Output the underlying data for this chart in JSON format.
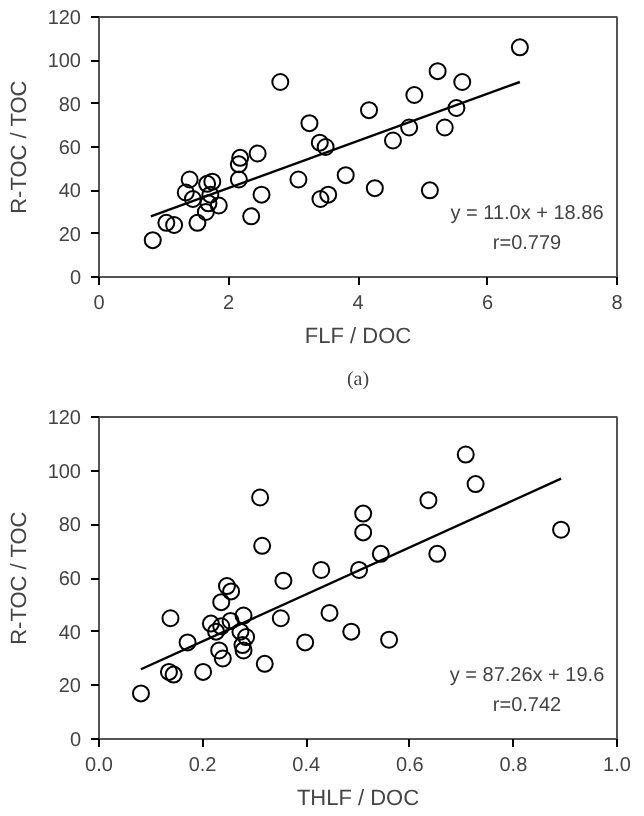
{
  "chart_data": [
    {
      "type": "scatter",
      "xlabel": "FLF / DOC",
      "ylabel": "R-TOC / TOC",
      "xlim": [
        0,
        8
      ],
      "ylim": [
        0,
        120
      ],
      "xticks": [
        0,
        2,
        4,
        6,
        8
      ],
      "yticks": [
        0,
        20,
        40,
        60,
        80,
        100,
        120
      ],
      "grid": false,
      "marker": "circle",
      "annotations": [
        "y = 11.0x + 18.86",
        "r=0.779",
        "(a)"
      ],
      "series": [
        {
          "type": "scatter",
          "color": "#000000",
          "x": [
            0.83,
            1.04,
            1.16,
            1.4,
            1.34,
            1.45,
            1.52,
            1.65,
            1.67,
            1.75,
            1.72,
            1.69,
            1.85,
            2.16,
            2.16,
            2.18,
            2.35,
            2.45,
            2.51,
            2.8,
            3.08,
            3.25,
            3.41,
            3.42,
            3.5,
            3.54,
            3.81,
            4.17,
            4.26,
            4.54,
            4.79,
            4.87,
            5.11,
            5.23,
            5.34,
            5.52,
            5.61,
            6.5
          ],
          "values": [
            17,
            25,
            24,
            45,
            39,
            36,
            25,
            30,
            43,
            44,
            38,
            34,
            33,
            45,
            52,
            55,
            28,
            57,
            38,
            90,
            45,
            71,
            62,
            36,
            60,
            38,
            47,
            77,
            41,
            63,
            69,
            84,
            40,
            95,
            69,
            78,
            90,
            106
          ]
        },
        {
          "type": "line",
          "color": "#000000",
          "line_style": "solid",
          "marker": "none",
          "x": [
            0.8,
            6.5
          ],
          "values": [
            28,
            90
          ]
        }
      ]
    },
    {
      "type": "scatter",
      "xlabel": "THLF / DOC",
      "ylabel": "R-TOC / TOC",
      "xlim": [
        0,
        1
      ],
      "ylim": [
        0,
        120
      ],
      "xticks": [
        {
          "value": 0,
          "label": "0.0"
        },
        {
          "value": 0.2,
          "label": "0.2"
        },
        {
          "value": 0.4,
          "label": "0.4"
        },
        {
          "value": 0.6,
          "label": "0.6"
        },
        {
          "value": 0.8,
          "label": "0.8"
        },
        {
          "value": 1,
          "label": "1.0"
        }
      ],
      "yticks": [
        0,
        20,
        40,
        60,
        80,
        100,
        120
      ],
      "grid": false,
      "marker": "circle",
      "annotations": [
        "y = 87.26x + 19.6",
        "r=0.742"
      ],
      "series": [
        {
          "type": "scatter",
          "color": "#000000",
          "x": [
            0.081,
            0.135,
            0.144,
            0.138,
            0.171,
            0.201,
            0.216,
            0.226,
            0.236,
            0.236,
            0.247,
            0.255,
            0.232,
            0.239,
            0.254,
            0.273,
            0.279,
            0.279,
            0.284,
            0.277,
            0.311,
            0.315,
            0.32,
            0.351,
            0.356,
            0.398,
            0.429,
            0.445,
            0.487,
            0.502,
            0.51,
            0.51,
            0.544,
            0.56,
            0.636,
            0.653,
            0.708,
            0.727,
            0.892
          ],
          "values": [
            17,
            25,
            24,
            45,
            36,
            25,
            43,
            40,
            42,
            51,
            57,
            55,
            33,
            30,
            44,
            40,
            46,
            33,
            38,
            35,
            90,
            72,
            28,
            45,
            59,
            36,
            63,
            47,
            40,
            63,
            84,
            77,
            69,
            37,
            89,
            69,
            106,
            95,
            78
          ]
        },
        {
          "type": "line",
          "color": "#000000",
          "line_style": "solid",
          "marker": "none",
          "x": [
            0.081,
            0.892
          ],
          "values": [
            26,
            97
          ]
        }
      ]
    }
  ]
}
